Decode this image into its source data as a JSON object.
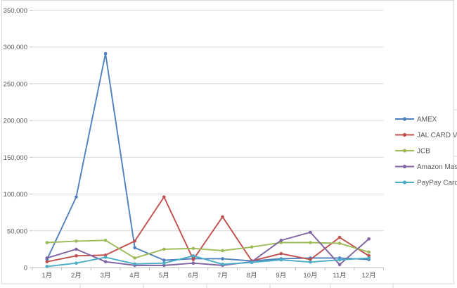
{
  "chart_data": {
    "type": "line",
    "title": "",
    "xlabel": "",
    "ylabel": "",
    "categories": [
      "1月",
      "2月",
      "3月",
      "4月",
      "5月",
      "6月",
      "7月",
      "8月",
      "9月",
      "10月",
      "11月",
      "12月"
    ],
    "series": [
      {
        "name": "AMEX",
        "color": "#4F81BD",
        "values": [
          11000,
          96000,
          291000,
          27000,
          10000,
          12000,
          12000,
          9000,
          12000,
          13000,
          13000,
          11000
        ]
      },
      {
        "name": "JAL CARD VISA",
        "color": "#C0504D",
        "values": [
          8000,
          16000,
          17000,
          36000,
          96000,
          11000,
          69000,
          9000,
          19000,
          11000,
          41000,
          16000
        ]
      },
      {
        "name": "JCB",
        "color": "#9BBB59",
        "values": [
          34000,
          36000,
          37000,
          13000,
          25000,
          26000,
          23000,
          28000,
          34000,
          34000,
          33000,
          21000
        ]
      },
      {
        "name": "Amazon Master",
        "color": "#8064A2",
        "values": [
          13000,
          25000,
          8000,
          3000,
          3000,
          6000,
          3000,
          8000,
          37000,
          48000,
          4000,
          39000
        ]
      },
      {
        "name": "PayPay Card",
        "color": "#4BACC6",
        "values": [
          1500,
          6000,
          14000,
          5000,
          6000,
          16000,
          4500,
          7000,
          10500,
          7500,
          10500,
          13000
        ]
      }
    ],
    "ylim": [
      0,
      350000
    ],
    "ytick_step": 50000,
    "ytick_labels": [
      "0",
      "50,000",
      "100,000",
      "150,000",
      "200,000",
      "250,000",
      "300,000",
      "350,000"
    ],
    "grid": true,
    "legend_position": "right-middle"
  },
  "style": {
    "gridline_color": "#D9D9D9",
    "axis_color": "#BFBFBF",
    "label_color": "#595959",
    "chart_border_color": "#D9D9D9",
    "background": "#FFFFFF",
    "sheet_line_color": "#D9D9D9"
  }
}
